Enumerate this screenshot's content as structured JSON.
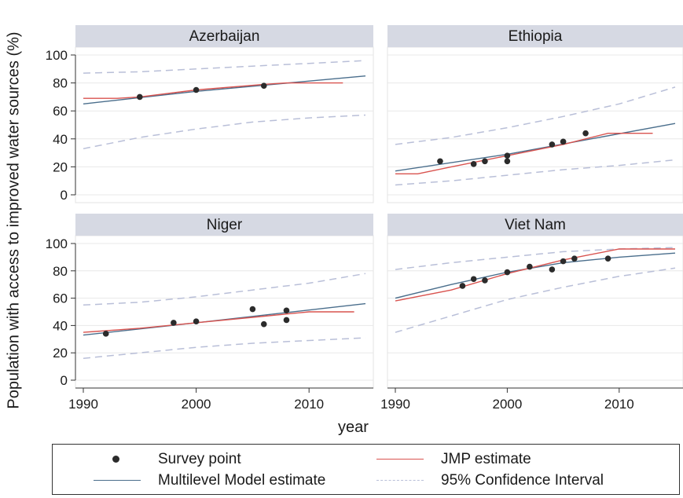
{
  "y_axis_label": "Population with access to improved water sources (%)",
  "x_axis_label": "year",
  "legend": [
    {
      "key": "survey",
      "label": "Survey point",
      "symbol": "dot-icon"
    },
    {
      "key": "jmp",
      "label": "JMP estimate",
      "symbol": "solid-line-icon"
    },
    {
      "key": "multilevel",
      "label": "Multilevel Model estimate",
      "symbol": "solid-line-icon"
    },
    {
      "key": "ci",
      "label": "95% Confidence Interval",
      "symbol": "dashed-line-icon"
    }
  ],
  "colors": {
    "jmp": "#d9534f",
    "multilevel": "#4a6e8c",
    "ci": "#b9bfd8",
    "survey": "#2b2b2b",
    "panel_header": "#d6d9e3",
    "grid": "#e8e8e8"
  },
  "chart_data": {
    "type": "line",
    "layout": "2x2 facet",
    "xlim": [
      1990,
      2015
    ],
    "ylim": [
      0,
      100
    ],
    "x_ticks": [
      1990,
      2000,
      2010
    ],
    "y_ticks": [
      0,
      20,
      40,
      60,
      80,
      100
    ],
    "panels": [
      {
        "title": "Azerbaijan",
        "survey_points": [
          [
            1995,
            70
          ],
          [
            2000,
            75
          ],
          [
            2006,
            78
          ]
        ],
        "jmp_estimate": [
          [
            1990,
            69
          ],
          [
            1993,
            69
          ],
          [
            1995,
            70
          ],
          [
            2000,
            75
          ],
          [
            2006,
            79
          ],
          [
            2008,
            80
          ],
          [
            2013,
            80
          ]
        ],
        "multilevel_estimate": [
          [
            1990,
            65
          ],
          [
            2000,
            74
          ],
          [
            2015,
            85
          ]
        ],
        "ci_upper": [
          [
            1990,
            87
          ],
          [
            1995,
            88
          ],
          [
            2000,
            90
          ],
          [
            2005,
            92
          ],
          [
            2010,
            94
          ],
          [
            2015,
            96
          ]
        ],
        "ci_lower": [
          [
            1990,
            33
          ],
          [
            1995,
            41
          ],
          [
            2000,
            47
          ],
          [
            2005,
            52
          ],
          [
            2010,
            55
          ],
          [
            2015,
            57
          ]
        ]
      },
      {
        "title": "Ethiopia",
        "survey_points": [
          [
            1994,
            24
          ],
          [
            1997,
            22
          ],
          [
            1998,
            24
          ],
          [
            2000,
            28
          ],
          [
            2000,
            24
          ],
          [
            2004,
            36
          ],
          [
            2005,
            38
          ],
          [
            2007,
            44
          ]
        ],
        "jmp_estimate": [
          [
            1990,
            15
          ],
          [
            1992,
            15
          ],
          [
            1995,
            20
          ],
          [
            2000,
            28
          ],
          [
            2005,
            36
          ],
          [
            2009,
            44
          ],
          [
            2013,
            44
          ]
        ],
        "multilevel_estimate": [
          [
            1990,
            17
          ],
          [
            2000,
            29
          ],
          [
            2015,
            51
          ]
        ],
        "ci_upper": [
          [
            1990,
            36
          ],
          [
            1995,
            41
          ],
          [
            2000,
            48
          ],
          [
            2005,
            56
          ],
          [
            2010,
            65
          ],
          [
            2015,
            77
          ]
        ],
        "ci_lower": [
          [
            1990,
            7
          ],
          [
            1995,
            10
          ],
          [
            2000,
            14
          ],
          [
            2005,
            18
          ],
          [
            2010,
            21
          ],
          [
            2015,
            25
          ]
        ]
      },
      {
        "title": "Niger",
        "survey_points": [
          [
            1992,
            34
          ],
          [
            1998,
            42
          ],
          [
            2000,
            43
          ],
          [
            2005,
            52
          ],
          [
            2006,
            41
          ],
          [
            2008,
            51
          ],
          [
            2008,
            44
          ]
        ],
        "jmp_estimate": [
          [
            1990,
            35
          ],
          [
            1995,
            38
          ],
          [
            2000,
            42
          ],
          [
            2005,
            46
          ],
          [
            2010,
            50
          ],
          [
            2014,
            50
          ]
        ],
        "multilevel_estimate": [
          [
            1990,
            33
          ],
          [
            2000,
            42
          ],
          [
            2015,
            56
          ]
        ],
        "ci_upper": [
          [
            1990,
            55
          ],
          [
            1995,
            57
          ],
          [
            2000,
            61
          ],
          [
            2005,
            66
          ],
          [
            2010,
            71
          ],
          [
            2015,
            78
          ]
        ],
        "ci_lower": [
          [
            1990,
            16
          ],
          [
            1995,
            20
          ],
          [
            2000,
            24
          ],
          [
            2005,
            27
          ],
          [
            2010,
            29
          ],
          [
            2015,
            31
          ]
        ]
      },
      {
        "title": "Viet Nam",
        "survey_points": [
          [
            1996,
            69
          ],
          [
            1997,
            74
          ],
          [
            1998,
            73
          ],
          [
            2000,
            79
          ],
          [
            2002,
            83
          ],
          [
            2004,
            81
          ],
          [
            2005,
            87
          ],
          [
            2006,
            89
          ],
          [
            2009,
            89
          ]
        ],
        "jmp_estimate": [
          [
            1990,
            58
          ],
          [
            1995,
            66
          ],
          [
            2000,
            78
          ],
          [
            2005,
            88
          ],
          [
            2010,
            96
          ],
          [
            2015,
            96
          ]
        ],
        "multilevel_estimate": [
          [
            1990,
            60
          ],
          [
            1995,
            70
          ],
          [
            2000,
            79
          ],
          [
            2005,
            86
          ],
          [
            2010,
            90
          ],
          [
            2015,
            93
          ]
        ],
        "ci_upper": [
          [
            1990,
            81
          ],
          [
            1995,
            86
          ],
          [
            2000,
            90
          ],
          [
            2005,
            94
          ],
          [
            2010,
            96
          ],
          [
            2015,
            97
          ]
        ],
        "ci_lower": [
          [
            1990,
            35
          ],
          [
            1995,
            47
          ],
          [
            2000,
            59
          ],
          [
            2005,
            68
          ],
          [
            2010,
            76
          ],
          [
            2015,
            82
          ]
        ]
      }
    ]
  }
}
